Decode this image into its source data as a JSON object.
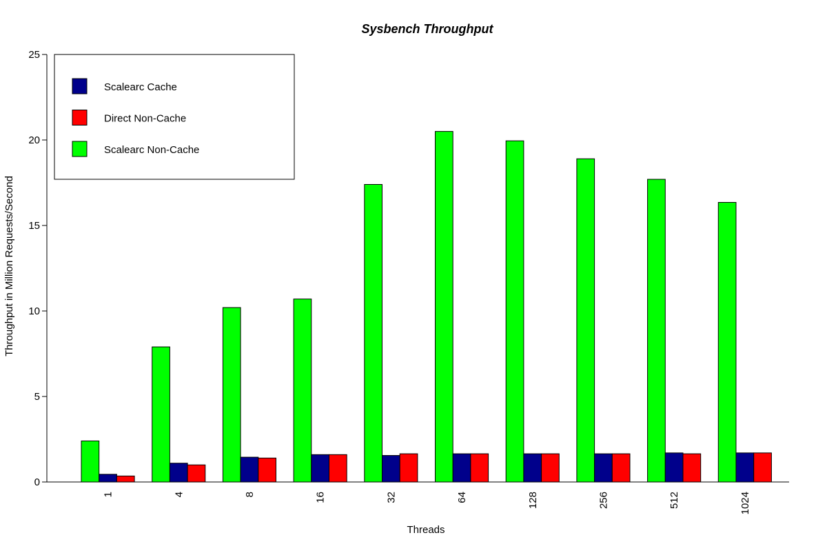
{
  "chart_data": {
    "type": "bar",
    "title": "Sysbench Throughput",
    "xlabel": "Threads",
    "ylabel": "Throughput in Million Requests/Second",
    "ylim": [
      0,
      25
    ],
    "yticks": [
      0,
      5,
      10,
      15,
      20,
      25
    ],
    "grid": false,
    "legend_position": "top-left",
    "categories": [
      "1",
      "4",
      "8",
      "16",
      "32",
      "64",
      "128",
      "256",
      "512",
      "1024"
    ],
    "bar_order": [
      "Scalearc Non-Cache",
      "Scalearc Cache",
      "Direct Non-Cache"
    ],
    "series": [
      {
        "name": "Scalearc Cache",
        "color": "#00008B",
        "values": [
          0.45,
          1.1,
          1.45,
          1.6,
          1.55,
          1.65,
          1.65,
          1.65,
          1.7,
          1.7
        ]
      },
      {
        "name": "Direct Non-Cache",
        "color": "#FF0000",
        "values": [
          0.35,
          1.0,
          1.4,
          1.6,
          1.65,
          1.65,
          1.65,
          1.65,
          1.65,
          1.7
        ]
      },
      {
        "name": "Scalearc Non-Cache",
        "color": "#00FF00",
        "values": [
          2.4,
          7.9,
          10.2,
          10.7,
          17.4,
          20.5,
          19.95,
          18.9,
          17.7,
          16.35
        ]
      }
    ]
  }
}
